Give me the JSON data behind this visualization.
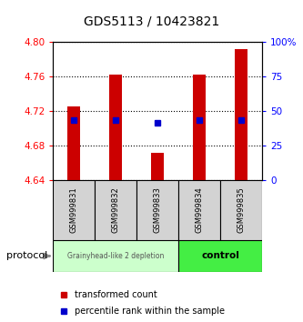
{
  "title": "GDS5113 / 10423821",
  "samples": [
    "GSM999831",
    "GSM999832",
    "GSM999833",
    "GSM999834",
    "GSM999835"
  ],
  "bar_bottoms": [
    4.64,
    4.64,
    4.64,
    4.64,
    4.64
  ],
  "bar_tops": [
    4.725,
    4.762,
    4.672,
    4.762,
    4.792
  ],
  "percentile_values": [
    4.71,
    4.71,
    4.706,
    4.71,
    4.71
  ],
  "ylim_left": [
    4.64,
    4.8
  ],
  "ylim_right": [
    0,
    100
  ],
  "yticks_left": [
    4.64,
    4.68,
    4.72,
    4.76,
    4.8
  ],
  "yticks_right": [
    0,
    25,
    50,
    75,
    100
  ],
  "ytick_labels_right": [
    "0",
    "25",
    "50",
    "75",
    "100%"
  ],
  "bar_color": "#cc0000",
  "percentile_color": "#0000cc",
  "group1_samples": [
    0,
    1,
    2
  ],
  "group2_samples": [
    3,
    4
  ],
  "group1_label": "Grainyhead-like 2 depletion",
  "group2_label": "control",
  "group1_bg": "#ccffcc",
  "group2_bg": "#44ee44",
  "protocol_label": "protocol",
  "legend_bar_label": "transformed count",
  "legend_pct_label": "percentile rank within the sample",
  "title_fontsize": 10,
  "tick_fontsize": 7.5,
  "bar_width": 0.3
}
